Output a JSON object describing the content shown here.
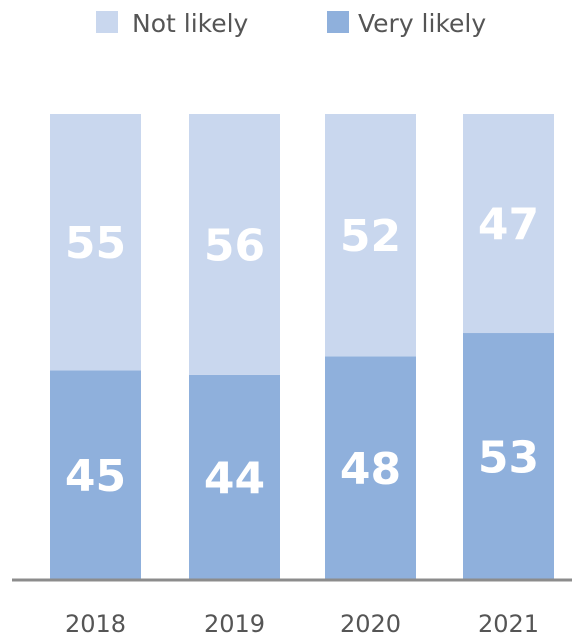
{
  "chart_data": {
    "type": "bar",
    "stacked": true,
    "percent": true,
    "categories": [
      "2018",
      "2019",
      "2020",
      "2021"
    ],
    "series": [
      {
        "name": "Very likely",
        "values": [
          45,
          44,
          48,
          53
        ],
        "color": "#8fb0dc"
      },
      {
        "name": "Not likely",
        "values": [
          55,
          56,
          52,
          47
        ],
        "color": "#c9d7ee"
      }
    ],
    "legend": {
      "placement": "top",
      "order": [
        "Not likely",
        "Very likely"
      ]
    },
    "ylim": [
      0,
      100
    ],
    "grid": false,
    "baseline_color": "#8c8c8c",
    "value_label_color": "#ffffff",
    "tick_label_color": "#555555"
  }
}
